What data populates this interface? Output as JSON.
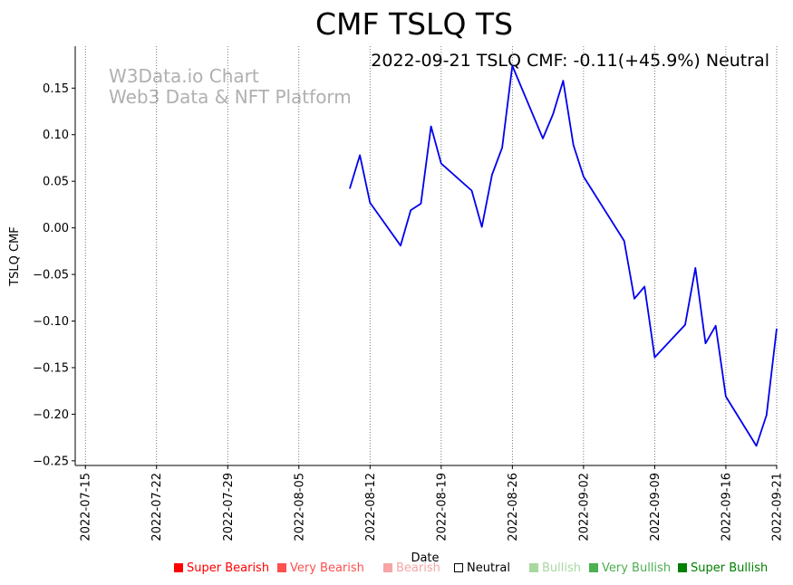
{
  "chart_data": {
    "type": "line",
    "title": "CMF TSLQ TS",
    "subtitle": "2022-09-21 TSLQ CMF: -0.11(+45.9%) Neutral",
    "watermark": [
      "W3Data.io Chart",
      "Web3 Data & NFT Platform"
    ],
    "xlabel": "Date",
    "ylabel": "TSLQ CMF",
    "x_range": [
      "2022-07-14",
      "2022-09-21"
    ],
    "ylim": [
      -0.255,
      0.195
    ],
    "x_ticks": [
      "2022-07-15",
      "2022-07-22",
      "2022-07-29",
      "2022-08-05",
      "2022-08-12",
      "2022-08-19",
      "2022-08-26",
      "2022-09-02",
      "2022-09-09",
      "2022-09-16",
      "2022-09-21"
    ],
    "y_ticks": [
      0.15,
      0.1,
      0.05,
      0.0,
      -0.05,
      -0.1,
      -0.15,
      -0.2,
      -0.25
    ],
    "y_tick_labels": [
      "0.15",
      "0.10",
      "0.05",
      "0.00",
      "−0.05",
      "−0.10",
      "−0.15",
      "−0.20",
      "−0.25"
    ],
    "grid": "vertical-dotted",
    "line_color": "#0000ee",
    "series": [
      {
        "name": "TSLQ CMF",
        "x": [
          "2022-08-10",
          "2022-08-11",
          "2022-08-12",
          "2022-08-15",
          "2022-08-16",
          "2022-08-17",
          "2022-08-18",
          "2022-08-19",
          "2022-08-22",
          "2022-08-23",
          "2022-08-24",
          "2022-08-25",
          "2022-08-26",
          "2022-08-29",
          "2022-08-30",
          "2022-08-31",
          "2022-09-01",
          "2022-09-02",
          "2022-09-06",
          "2022-09-07",
          "2022-09-08",
          "2022-09-09",
          "2022-09-12",
          "2022-09-13",
          "2022-09-14",
          "2022-09-15",
          "2022-09-16",
          "2022-09-19",
          "2022-09-20",
          "2022-09-21"
        ],
        "values": [
          0.042,
          0.078,
          0.027,
          -0.019,
          0.019,
          0.026,
          0.109,
          0.069,
          0.04,
          0.001,
          0.057,
          0.086,
          0.174,
          0.096,
          0.122,
          0.158,
          0.089,
          0.055,
          -0.014,
          -0.076,
          -0.063,
          -0.139,
          -0.104,
          -0.043,
          -0.124,
          -0.105,
          -0.181,
          -0.234,
          -0.201,
          -0.108
        ]
      }
    ]
  },
  "legend": [
    {
      "label": "Super Bearish",
      "color": "#ff0000",
      "fill": "#ff0000"
    },
    {
      "label": "Very Bearish",
      "color": "#ff4f4f",
      "fill": "#ff4f4f"
    },
    {
      "label": "Bearish",
      "color": "#f7a5a5",
      "fill": "#f7a5a5"
    },
    {
      "label": "Neutral",
      "color": "#000000",
      "fill": "#ffffff"
    },
    {
      "label": "Bullish",
      "color": "#a8d8a0",
      "fill": "#a8d8a0"
    },
    {
      "label": "Very Bullish",
      "color": "#4caf50",
      "fill": "#4caf50"
    },
    {
      "label": "Super Bullish",
      "color": "#008000",
      "fill": "#008000"
    }
  ]
}
